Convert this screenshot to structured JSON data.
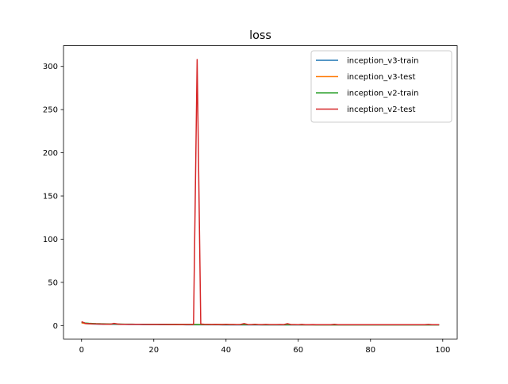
{
  "chart_data": {
    "type": "line",
    "title": "loss",
    "xlabel": "",
    "ylabel": "",
    "xlim": [
      -5,
      104
    ],
    "ylim": [
      -15.5,
      324
    ],
    "xticks": [
      0,
      20,
      40,
      60,
      80,
      100
    ],
    "yticks": [
      0,
      50,
      100,
      150,
      200,
      250,
      300
    ],
    "grid": false,
    "legend_position": "top-right",
    "x": [
      0,
      1,
      2,
      3,
      4,
      5,
      6,
      7,
      8,
      9,
      10,
      11,
      12,
      13,
      14,
      15,
      16,
      17,
      18,
      19,
      20,
      21,
      22,
      23,
      24,
      25,
      26,
      27,
      28,
      29,
      30,
      31,
      32,
      33,
      34,
      35,
      36,
      37,
      38,
      39,
      40,
      41,
      42,
      43,
      44,
      45,
      46,
      47,
      48,
      49,
      50,
      51,
      52,
      53,
      54,
      55,
      56,
      57,
      58,
      59,
      60,
      61,
      62,
      63,
      64,
      65,
      66,
      67,
      68,
      69,
      70,
      71,
      72,
      73,
      74,
      75,
      76,
      77,
      78,
      79,
      80,
      81,
      82,
      83,
      84,
      85,
      86,
      87,
      88,
      89,
      90,
      91,
      92,
      93,
      94,
      95,
      96,
      97,
      98,
      99
    ],
    "series": [
      {
        "name": "inception_v3-train",
        "color": "#1f77b4",
        "values": [
          3.5,
          2.4,
          2.0,
          1.8,
          1.7,
          1.6,
          1.5,
          1.5,
          1.4,
          1.4,
          1.3,
          1.3,
          1.3,
          1.2,
          1.2,
          1.2,
          1.2,
          1.1,
          1.1,
          1.1,
          1.1,
          1.1,
          1.0,
          1.0,
          1.0,
          1.0,
          1.0,
          1.0,
          1.0,
          0.9,
          0.9,
          0.9,
          0.9,
          0.9,
          0.9,
          0.9,
          0.9,
          0.9,
          0.9,
          0.8,
          0.8,
          0.8,
          0.8,
          0.8,
          0.8,
          0.8,
          0.8,
          0.8,
          0.8,
          0.8,
          0.8,
          0.8,
          0.8,
          0.8,
          0.8,
          0.8,
          0.8,
          0.8,
          0.8,
          0.8,
          0.7,
          0.7,
          0.7,
          0.7,
          0.7,
          0.7,
          0.7,
          0.7,
          0.7,
          0.7,
          0.7,
          0.7,
          0.7,
          0.7,
          0.7,
          0.7,
          0.7,
          0.7,
          0.7,
          0.7,
          0.7,
          0.7,
          0.7,
          0.7,
          0.7,
          0.7,
          0.7,
          0.7,
          0.7,
          0.7,
          0.7,
          0.7,
          0.7,
          0.7,
          0.7,
          0.7,
          0.7,
          0.7,
          0.7,
          0.7
        ]
      },
      {
        "name": "inception_v3-test",
        "color": "#ff7f0e",
        "values": [
          3.0,
          2.3,
          2.1,
          2.0,
          1.9,
          1.8,
          1.8,
          1.7,
          1.6,
          2.2,
          1.6,
          1.5,
          1.5,
          1.5,
          1.4,
          1.5,
          1.4,
          1.4,
          1.4,
          1.3,
          1.4,
          1.3,
          1.3,
          1.3,
          1.3,
          1.2,
          1.3,
          1.2,
          1.2,
          1.2,
          1.2,
          1.2,
          1.2,
          1.2,
          1.1,
          1.2,
          1.1,
          1.1,
          1.2,
          1.1,
          1.1,
          1.1,
          1.1,
          1.0,
          1.1,
          1.1,
          1.0,
          1.0,
          1.1,
          1.0,
          1.0,
          1.0,
          1.0,
          1.0,
          1.0,
          1.0,
          1.0,
          1.0,
          1.0,
          1.0,
          1.0,
          0.9,
          1.0,
          0.9,
          0.9,
          0.9,
          1.0,
          0.9,
          0.9,
          0.9,
          0.9,
          0.9,
          0.9,
          0.9,
          0.9,
          0.9,
          0.9,
          0.9,
          0.9,
          0.9,
          0.9,
          0.9,
          0.9,
          0.9,
          0.9,
          0.9,
          0.9,
          0.9,
          0.9,
          0.9,
          0.9,
          0.9,
          0.9,
          0.9,
          0.9,
          0.9,
          0.9,
          0.9,
          0.9,
          0.9
        ]
      },
      {
        "name": "inception_v2-train",
        "color": "#2ca02c",
        "values": [
          4.0,
          3.0,
          2.6,
          2.4,
          2.2,
          2.1,
          2.0,
          1.9,
          1.8,
          1.8,
          1.7,
          1.7,
          1.6,
          1.6,
          1.6,
          1.5,
          1.5,
          1.5,
          1.4,
          1.4,
          1.4,
          1.4,
          1.3,
          1.3,
          1.3,
          1.3,
          1.3,
          1.2,
          1.2,
          1.2,
          1.2,
          1.2,
          1.2,
          1.1,
          1.1,
          1.1,
          1.1,
          1.1,
          1.1,
          1.1,
          1.0,
          1.0,
          1.0,
          1.0,
          1.0,
          1.0,
          1.0,
          1.0,
          1.0,
          1.0,
          0.9,
          0.9,
          0.9,
          0.9,
          0.9,
          0.9,
          0.9,
          0.9,
          0.9,
          0.9,
          0.9,
          0.9,
          0.9,
          0.9,
          0.9,
          0.8,
          0.8,
          0.8,
          0.8,
          0.8,
          0.8,
          0.8,
          0.8,
          0.8,
          0.8,
          0.8,
          0.8,
          0.8,
          0.8,
          0.8,
          0.8,
          0.8,
          0.8,
          0.8,
          0.8,
          0.8,
          0.8,
          0.8,
          0.8,
          0.8,
          0.8,
          0.8,
          0.8,
          0.8,
          0.8,
          0.8,
          0.8,
          0.8,
          0.8,
          0.8
        ]
      },
      {
        "name": "inception_v2-test",
        "color": "#d62728",
        "values": [
          4.5,
          2.5,
          2.2,
          2.0,
          1.9,
          1.8,
          1.7,
          1.7,
          1.6,
          2.5,
          1.8,
          1.5,
          1.5,
          1.4,
          1.4,
          1.4,
          1.4,
          1.3,
          1.3,
          1.3,
          1.3,
          1.3,
          1.3,
          1.3,
          1.2,
          1.2,
          1.2,
          1.2,
          1.2,
          1.2,
          1.2,
          1.5,
          308,
          1.8,
          1.4,
          1.3,
          1.2,
          1.3,
          1.2,
          1.2,
          1.5,
          1.2,
          1.2,
          1.1,
          1.2,
          2.3,
          1.2,
          1.1,
          1.4,
          1.1,
          1.1,
          1.3,
          1.1,
          1.1,
          1.1,
          1.2,
          1.1,
          2.2,
          1.1,
          1.1,
          1.0,
          1.3,
          1.0,
          1.0,
          1.1,
          1.0,
          1.0,
          1.0,
          1.0,
          1.0,
          1.4,
          1.0,
          1.0,
          1.0,
          1.0,
          1.0,
          1.0,
          1.0,
          1.0,
          1.0,
          1.0,
          1.0,
          1.0,
          1.0,
          1.0,
          1.0,
          1.0,
          1.0,
          1.0,
          1.0,
          1.0,
          1.0,
          1.0,
          1.0,
          1.0,
          1.0,
          1.3,
          1.0,
          1.0,
          1.0
        ]
      }
    ]
  }
}
